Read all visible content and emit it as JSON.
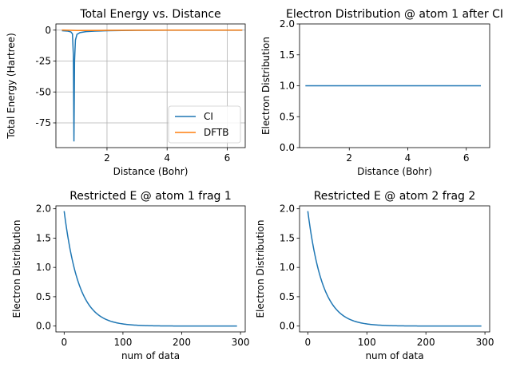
{
  "figure": {
    "background": "#ffffff",
    "series_color": "#1f77b4",
    "second_color": "#ff7f0e",
    "grid_color": "#b0b0b0"
  },
  "chart_data": [
    {
      "id": "energy",
      "type": "line",
      "title": "Total Energy vs. Distance",
      "xlabel": "Distance (Bohr)",
      "ylabel": "Total Energy (Hartree)",
      "xlim": [
        0.3,
        6.6
      ],
      "ylim": [
        -95,
        5
      ],
      "xticks": [
        2,
        4,
        6
      ],
      "yticks": [
        0,
        -25,
        -50,
        -75
      ],
      "grid": true,
      "legend": "lower-right",
      "series": [
        {
          "name": "CI",
          "color": "#1f77b4",
          "x": [
            0.5,
            0.7,
            0.8,
            0.85,
            0.88,
            0.9,
            0.92,
            0.95,
            1.0,
            1.1,
            1.3,
            1.6,
            2.0,
            3.0,
            4.0,
            5.0,
            6.5
          ],
          "y": [
            -0.5,
            -0.8,
            -1.5,
            -3,
            -20,
            -90,
            -25,
            -8,
            -3.5,
            -2.0,
            -1.2,
            -0.8,
            -0.5,
            -0.2,
            -0.1,
            -0.1,
            -0.1
          ]
        },
        {
          "name": "DFTB",
          "color": "#ff7f0e",
          "x": [
            0.5,
            1.0,
            2.0,
            3.0,
            4.0,
            5.0,
            6.5
          ],
          "y": [
            0.1,
            -0.3,
            -0.2,
            -0.1,
            0.0,
            0.0,
            0.0
          ]
        }
      ]
    },
    {
      "id": "distribution",
      "type": "line",
      "title": "Electron Distribution @ atom 1 after CI",
      "xlabel": "Distance (Bohr)",
      "ylabel": "Electron Distribution",
      "xlim": [
        0.3,
        6.8
      ],
      "ylim": [
        0.0,
        2.0
      ],
      "xticks": [
        2,
        4,
        6
      ],
      "yticks": [
        0.0,
        0.5,
        1.0,
        1.5,
        2.0
      ],
      "grid": false,
      "series": [
        {
          "color": "#1f77b4",
          "x": [
            0.5,
            6.5
          ],
          "y": [
            1.0,
            1.0
          ]
        }
      ]
    },
    {
      "id": "frag1",
      "type": "line",
      "title": "Restricted E @ atom 1 frag 1",
      "xlabel": "num of data",
      "ylabel": "Electron Distribution",
      "xlim": [
        -14,
        308
      ],
      "ylim": [
        -0.1,
        2.05
      ],
      "xticks": [
        0,
        100,
        200,
        300
      ],
      "yticks": [
        0.0,
        0.5,
        1.0,
        1.5,
        2.0
      ],
      "grid": false,
      "series": [
        {
          "color": "#1f77b4",
          "decay": {
            "amplitude": 1.96,
            "scale": 25,
            "start": 0,
            "end": 295
          }
        }
      ]
    },
    {
      "id": "frag2",
      "type": "line",
      "title": "Restricted E @ atom 2 frag 2",
      "xlabel": "num of data",
      "ylabel": "Electron Distribution",
      "xlim": [
        -14,
        308
      ],
      "ylim": [
        -0.1,
        2.05
      ],
      "xticks": [
        0,
        100,
        200,
        300
      ],
      "yticks": [
        0.0,
        0.5,
        1.0,
        1.5,
        2.0
      ],
      "grid": false,
      "series": [
        {
          "color": "#1f77b4",
          "decay": {
            "amplitude": 1.96,
            "scale": 25,
            "start": 0,
            "end": 295
          }
        }
      ]
    }
  ]
}
